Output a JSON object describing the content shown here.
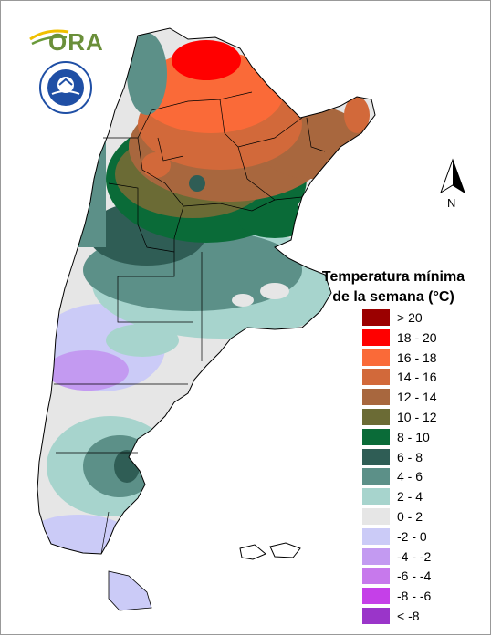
{
  "legend": {
    "title_line1": "Temperatura mínima",
    "title_line2": "de la semana (°C)",
    "items": [
      {
        "label": "> 20",
        "color": "#9b0000"
      },
      {
        "label": "18 - 20",
        "color": "#ff0000"
      },
      {
        "label": "16 - 18",
        "color": "#fa6a38"
      },
      {
        "label": "14 - 16",
        "color": "#d2693a"
      },
      {
        "label": "12 - 14",
        "color": "#a8673e"
      },
      {
        "label": "10 - 12",
        "color": "#6b6b35"
      },
      {
        "label": "8 - 10",
        "color": "#0a6b38"
      },
      {
        "label": "6 - 8",
        "color": "#2f5d55"
      },
      {
        "label": "4 - 6",
        "color": "#5c9088"
      },
      {
        "label": "2 - 4",
        "color": "#a7d4cd"
      },
      {
        "label": "0 - 2",
        "color": "#e6e6e6"
      },
      {
        "label": "-2 - 0",
        "color": "#cbcbf7"
      },
      {
        "label": "-4 - -2",
        "color": "#c39af1"
      },
      {
        "label": "-6 - -4",
        "color": "#c779ec"
      },
      {
        "label": "-8 - -6",
        "color": "#c540e8"
      },
      {
        "label": "< -8",
        "color": "#9a35c9"
      }
    ]
  },
  "logo": {
    "text": "ORA"
  },
  "north_arrow": {
    "label": "N"
  },
  "map": {
    "ocean_color": "#ffffff",
    "border_color": "#000000"
  }
}
